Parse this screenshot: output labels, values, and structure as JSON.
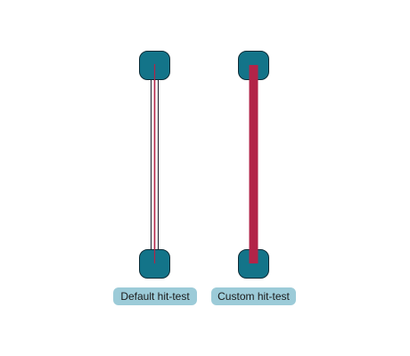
{
  "colors": {
    "node_fill": "#137489",
    "node_stroke": "#0b2a35",
    "edge_highlight": "#b22448",
    "edge_outline": "#1b1b2a",
    "label_background": "#9ccbd8",
    "label_text": "#1a1a1a",
    "background": "#ffffff"
  },
  "diagrams": [
    {
      "label": "Default hit-test",
      "edge_style": "thin-double-with-highlight"
    },
    {
      "label": "Custom hit-test",
      "edge_style": "thick-highlight"
    }
  ]
}
